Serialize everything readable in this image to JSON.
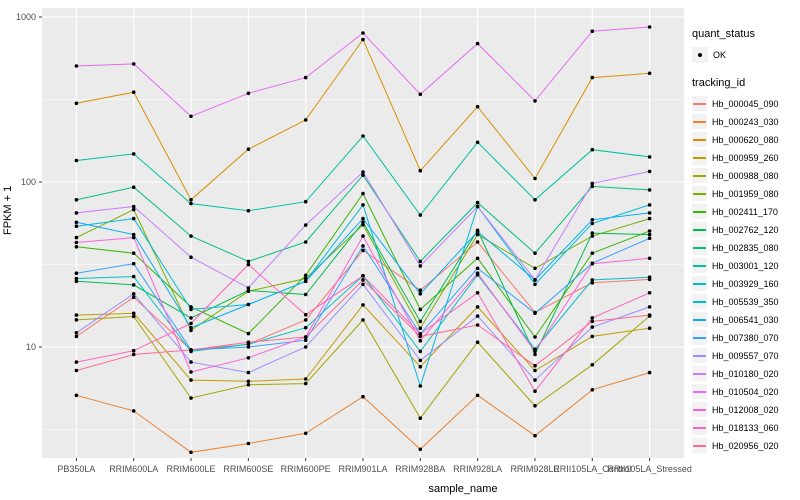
{
  "chart_data": {
    "type": "line",
    "title": "",
    "xlabel": "sample_name",
    "ylabel": "FPKM + 1",
    "y_scale": "log10",
    "y_ticks": [
      {
        "label": "1000",
        "value": 1000
      },
      {
        "label": "100",
        "value": 100
      },
      {
        "label": "10",
        "value": 10
      }
    ],
    "y_minor_gridlines": [
      316.2,
      31.62,
      3.162
    ],
    "ylim": [
      2.1,
      1130
    ],
    "grid": "white major+minor gridlines on gray panel",
    "legend_position": "right",
    "categories": [
      "PB350LA",
      "RRIM600LA",
      "RRIM600LE",
      "RRIM600SE",
      "RRIM600PE",
      "RRIM901LA",
      "RRIM928BA",
      "RRIM928LA",
      "RRIM928LE",
      "RRII105LA_Control",
      "RRII105LA_Stressed"
    ],
    "series": [
      {
        "name": "Hb_000045_090",
        "color": "#F8766D",
        "values": [
          11.6,
          20,
          9.6,
          10.4,
          14.6,
          38.5,
          22.1,
          43.3,
          16.2,
          24.5,
          25.7
        ]
      },
      {
        "name": "Hb_000243_030",
        "color": "#EA8331",
        "values": [
          5.1,
          4.1,
          2.3,
          2.6,
          3.0,
          5.0,
          2.4,
          5.1,
          2.9,
          5.5,
          7.0
        ]
      },
      {
        "name": "Hb_000620_080",
        "color": "#D89000",
        "values": [
          300,
          350,
          78,
          158,
          238,
          730,
          117,
          286,
          105,
          429,
          456
        ]
      },
      {
        "name": "Hb_000959_260",
        "color": "#C09B00",
        "values": [
          15.6,
          16,
          6.3,
          6.2,
          6.4,
          18,
          7.6,
          17.5,
          7.2,
          11.6,
          13.0
        ]
      },
      {
        "name": "Hb_000988_080",
        "color": "#A3A500",
        "values": [
          14.6,
          15.3,
          4.9,
          5.9,
          6.0,
          14.6,
          3.7,
          10.7,
          4.4,
          7.8,
          15.4
        ]
      },
      {
        "name": "Hb_001959_080",
        "color": "#7CAE00",
        "values": [
          46,
          68,
          12.6,
          21.8,
          26,
          55,
          13,
          48,
          30,
          47,
          60
        ]
      },
      {
        "name": "Hb_002411_170",
        "color": "#39B600",
        "values": [
          40.5,
          37,
          17.5,
          12.05,
          27.2,
          85,
          16.9,
          34.5,
          11.5,
          37,
          50.5
        ]
      },
      {
        "name": "Hb_002762_120",
        "color": "#00BB4E",
        "values": [
          25,
          23.8,
          15,
          22,
          20.8,
          57,
          14.3,
          51,
          9.0,
          49,
          48
        ]
      },
      {
        "name": "Hb_002835_080",
        "color": "#00BF7D",
        "values": [
          78,
          93,
          47,
          33,
          43.3,
          110,
          33,
          75,
          37,
          94,
          89.5
        ]
      },
      {
        "name": "Hb_003001_120",
        "color": "#00C1A3",
        "values": [
          135,
          148,
          74,
          67,
          76,
          190,
          63,
          174,
          78,
          157,
          142
        ]
      },
      {
        "name": "Hb_003929_160",
        "color": "#00BFC4",
        "values": [
          26,
          26.7,
          9.4,
          10.4,
          13.1,
          27,
          9.4,
          27.4,
          9.7,
          25.5,
          26.5
        ]
      },
      {
        "name": "Hb_005539_350",
        "color": "#00BAE0",
        "values": [
          54,
          60,
          16.9,
          18.1,
          25,
          72.6,
          5.8,
          71,
          24,
          56,
          72.6
        ]
      },
      {
        "name": "Hb_006541_030",
        "color": "#00B0F6",
        "values": [
          57,
          48,
          13.1,
          18.1,
          25,
          60,
          21,
          50,
          25.5,
          59,
          65
        ]
      },
      {
        "name": "Hb_007380_070",
        "color": "#35A2FF",
        "values": [
          28,
          32,
          9.6,
          10.0,
          11.0,
          41,
          12,
          30,
          16,
          32.2,
          45.6
        ]
      },
      {
        "name": "Hb_009557_070",
        "color": "#9590FF",
        "values": [
          12.2,
          21,
          8.1,
          7.0,
          10.0,
          24,
          8.3,
          15.4,
          6.3,
          13.2,
          17.5
        ]
      },
      {
        "name": "Hb_010180_020",
        "color": "#C77CFF",
        "values": [
          65,
          71,
          35,
          22.8,
          54.8,
          115,
          31,
          71,
          25.5,
          98,
          116
        ]
      },
      {
        "name": "Hb_010504_020",
        "color": "#E76BF3",
        "values": [
          505,
          520,
          250,
          345,
          429,
          800,
          340,
          690,
          310,
          820,
          870
        ]
      },
      {
        "name": "Hb_012008_020",
        "color": "#FA62DB",
        "values": [
          43,
          46,
          7.05,
          8.6,
          11.5,
          47,
          10.9,
          28,
          9.4,
          32,
          34.5
        ]
      },
      {
        "name": "Hb_018133_060",
        "color": "#FF62BC",
        "values": [
          8.1,
          9.5,
          13.9,
          31.6,
          15.7,
          27,
          12,
          21.3,
          5.4,
          15,
          21.3
        ]
      },
      {
        "name": "Hb_020956_020",
        "color": "#FF6A98",
        "values": [
          7.2,
          9.0,
          9.6,
          10.7,
          11.5,
          25.5,
          11.6,
          13.6,
          7.7,
          14.3,
          15.6
        ]
      }
    ],
    "legend": {
      "quant_status_title": "quant_status",
      "quant_status_items": [
        "OK"
      ],
      "tracking_title": "tracking_id"
    }
  },
  "colors": {
    "panel_bg": "#EBEBEB",
    "grid": "#FFFFFF",
    "tick_text": "#4D4D4D",
    "point": "#000000",
    "legend_key_bg": "#F2F2F2"
  }
}
